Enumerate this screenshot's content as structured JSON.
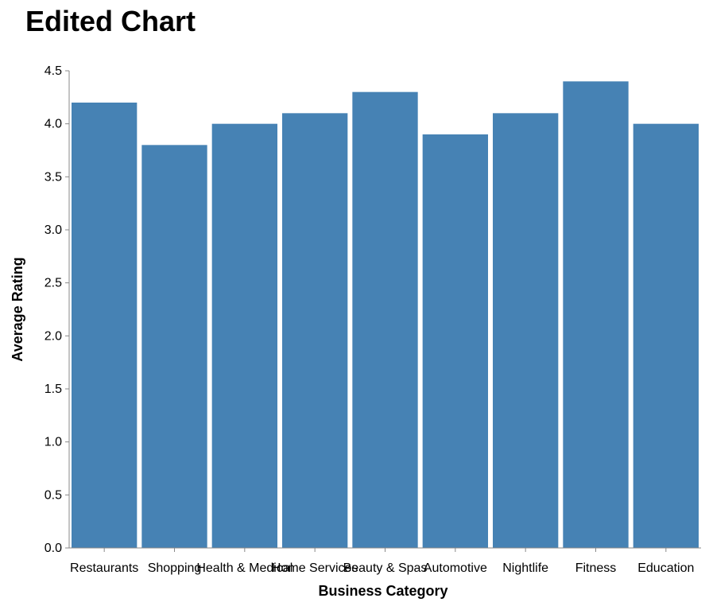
{
  "chart_data": {
    "type": "bar",
    "title": "Edited Chart",
    "xlabel": "Business Category",
    "ylabel": "Average Rating",
    "categories": [
      "Restaurants",
      "Shopping",
      "Health & Medical",
      "Home Services",
      "Beauty & Spas",
      "Automotive",
      "Nightlife",
      "Fitness",
      "Education"
    ],
    "values": [
      4.2,
      3.8,
      4.0,
      4.1,
      4.3,
      3.9,
      4.1,
      4.4,
      4.0
    ],
    "ylim": [
      0,
      4.5
    ],
    "yticks": [
      "0.0",
      "0.5",
      "1.0",
      "1.5",
      "2.0",
      "2.5",
      "3.0",
      "3.5",
      "4.0",
      "4.5"
    ],
    "grid": false,
    "bar_color": "#4682b4",
    "axis_color": "#888888"
  }
}
